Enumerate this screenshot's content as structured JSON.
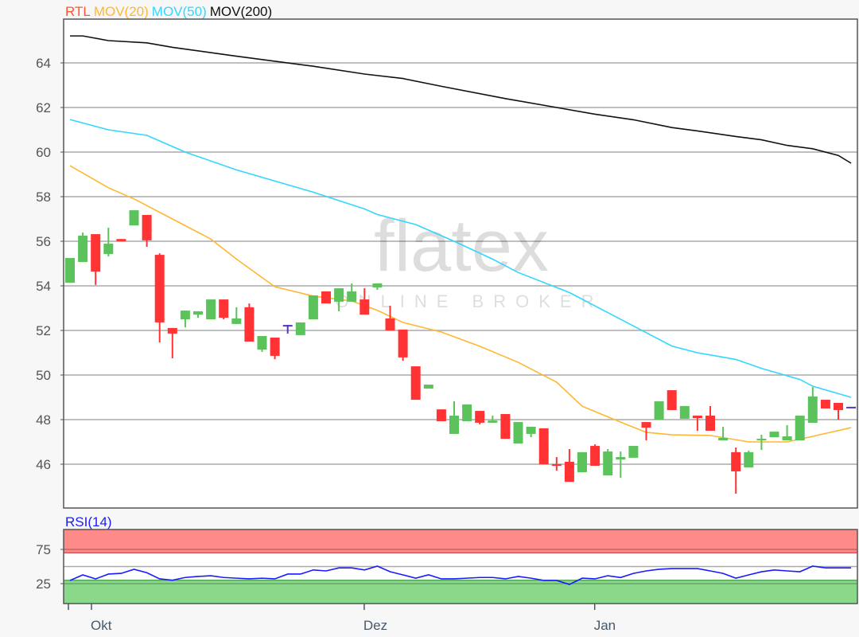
{
  "watermark": {
    "logo": "flatex",
    "sub": "ONLINE BROKER"
  },
  "colors": {
    "up": "#5cc25c",
    "down": "#ff3333",
    "doji": "#5a2fd0",
    "mov20": "#ffb733",
    "mov50": "#33d6ff",
    "mov200": "#111111",
    "rsi": "#1a1aff",
    "overbought_band": "#ff8a8a",
    "oversold_band": "#8ad88a"
  },
  "chart_data": [
    {
      "type": "candlestick",
      "legend": [
        {
          "name": "RTL",
          "color": "#ff5533"
        },
        {
          "name": "MOV(20)",
          "color": "#ffb733"
        },
        {
          "name": "MOV(50)",
          "color": "#33d6ff"
        },
        {
          "name": "MOV(200)",
          "color": "#111111"
        }
      ],
      "ylim": [
        44.07,
        65.96
      ],
      "y_ticks": [
        46,
        48,
        50,
        52,
        54,
        56,
        58,
        60,
        62,
        64
      ],
      "grid": true,
      "x_ticks": [
        {
          "label": "",
          "index": 0
        },
        {
          "label": "Okt",
          "index": 1.8
        },
        {
          "label": "Dez",
          "index": 23.1
        },
        {
          "label": "Jan",
          "index": 41.1
        }
      ],
      "ohlc": [
        [
          54.14,
          55.25,
          54.14,
          55.25
        ],
        [
          55.07,
          56.39,
          55.07,
          56.25
        ],
        [
          56.32,
          56.32,
          54.04,
          54.64
        ],
        [
          55.43,
          56.61,
          55.32,
          55.89
        ],
        [
          56.1,
          56.1,
          56.0,
          56.0
        ],
        [
          56.71,
          57.39,
          56.71,
          57.39
        ],
        [
          57.18,
          57.18,
          55.75,
          56.04
        ],
        [
          55.39,
          55.46,
          51.46,
          52.36
        ],
        [
          52.11,
          52.11,
          50.75,
          51.86
        ],
        [
          52.5,
          52.89,
          52.14,
          52.89
        ],
        [
          52.71,
          52.86,
          52.57,
          52.86
        ],
        [
          52.5,
          53.39,
          52.5,
          53.39
        ],
        [
          53.39,
          53.39,
          52.5,
          52.57
        ],
        [
          52.29,
          53.04,
          52.29,
          52.54
        ],
        [
          53.04,
          53.21,
          51.5,
          51.5
        ],
        [
          51.14,
          51.75,
          51.04,
          51.75
        ],
        [
          51.68,
          51.68,
          50.71,
          50.86
        ],
        [
          52.21,
          52.25,
          51.86,
          52.21
        ],
        [
          51.79,
          52.36,
          51.79,
          52.36
        ],
        [
          52.5,
          53.57,
          52.5,
          53.57
        ],
        [
          53.75,
          53.75,
          53.21,
          53.21
        ],
        [
          53.29,
          53.89,
          52.86,
          53.89
        ],
        [
          53.29,
          54.11,
          53.29,
          53.75
        ],
        [
          53.39,
          53.89,
          52.71,
          52.71
        ],
        [
          53.93,
          54.11,
          53.82,
          54.11
        ],
        [
          52.54,
          53.11,
          52.0,
          52.0
        ],
        [
          52.04,
          52.04,
          50.64,
          50.79
        ],
        [
          50.39,
          50.39,
          48.89,
          48.89
        ],
        [
          49.39,
          49.57,
          49.39,
          49.57
        ],
        [
          48.46,
          48.46,
          47.93,
          47.93
        ],
        [
          47.36,
          48.82,
          47.36,
          48.18
        ],
        [
          47.93,
          48.68,
          47.93,
          48.68
        ],
        [
          48.39,
          48.39,
          47.79,
          47.86
        ],
        [
          47.86,
          48.18,
          47.86,
          47.96
        ],
        [
          48.25,
          48.25,
          47.14,
          47.14
        ],
        [
          46.93,
          47.89,
          46.93,
          47.89
        ],
        [
          47.36,
          47.68,
          47.21,
          47.68
        ],
        [
          47.61,
          47.61,
          46.0,
          46.0
        ],
        [
          46.0,
          46.32,
          45.71,
          45.93
        ],
        [
          46.11,
          46.68,
          45.21,
          45.21
        ],
        [
          45.64,
          46.54,
          45.64,
          46.54
        ],
        [
          46.82,
          46.89,
          45.93,
          45.93
        ],
        [
          45.5,
          46.68,
          45.5,
          46.57
        ],
        [
          46.21,
          46.57,
          45.39,
          46.32
        ],
        [
          46.29,
          46.82,
          46.29,
          46.82
        ],
        [
          47.89,
          47.89,
          47.07,
          47.64
        ],
        [
          48.0,
          48.82,
          48.0,
          48.82
        ],
        [
          49.32,
          49.32,
          48.43,
          48.43
        ],
        [
          48.04,
          48.61,
          48.04,
          48.61
        ],
        [
          48.18,
          48.18,
          47.5,
          48.07
        ],
        [
          48.18,
          48.61,
          47.5,
          47.5
        ],
        [
          47.07,
          47.68,
          47.07,
          47.18
        ],
        [
          46.54,
          46.75,
          44.68,
          45.68
        ],
        [
          45.86,
          46.61,
          45.86,
          46.54
        ],
        [
          47.1,
          47.32,
          46.64,
          47.14
        ],
        [
          47.21,
          47.46,
          47.21,
          47.46
        ],
        [
          47.07,
          47.75,
          47.07,
          47.25
        ],
        [
          47.07,
          48.18,
          47.07,
          48.18
        ],
        [
          47.86,
          49.46,
          47.86,
          49.04
        ],
        [
          48.89,
          48.89,
          48.5,
          48.5
        ],
        [
          48.75,
          48.75,
          48.0,
          48.43
        ],
        [
          48.54,
          48.54,
          48.54,
          48.54
        ]
      ],
      "moving_averages": [
        {
          "name": "MOV(20)",
          "points": [
            [
              0,
              59.39
            ],
            [
              3,
              58.4
            ],
            [
              5,
              57.9
            ],
            [
              8,
              57.0
            ],
            [
              11,
              56.1
            ],
            [
              13,
              55.2
            ],
            [
              16,
              53.96
            ],
            [
              19,
              53.54
            ],
            [
              22,
              53.32
            ],
            [
              24,
              52.9
            ],
            [
              26,
              52.36
            ],
            [
              29,
              51.93
            ],
            [
              32,
              51.29
            ],
            [
              35,
              50.57
            ],
            [
              38,
              49.68
            ],
            [
              40,
              48.6
            ],
            [
              43,
              47.89
            ],
            [
              45,
              47.43
            ],
            [
              47,
              47.32
            ],
            [
              50,
              47.29
            ],
            [
              53,
              47.0
            ],
            [
              56,
              47.0
            ],
            [
              58,
              47.25
            ],
            [
              61,
              47.64
            ]
          ]
        },
        {
          "name": "MOV(50)",
          "points": [
            [
              0,
              61.46
            ],
            [
              3,
              61.0
            ],
            [
              6,
              60.75
            ],
            [
              7,
              60.5
            ],
            [
              9,
              60.0
            ],
            [
              13,
              59.2
            ],
            [
              16,
              58.7
            ],
            [
              19,
              58.2
            ],
            [
              23,
              57.45
            ],
            [
              24,
              57.2
            ],
            [
              27,
              56.75
            ],
            [
              30,
              56.0
            ],
            [
              33,
              55.2
            ],
            [
              35,
              54.6
            ],
            [
              39,
              53.7
            ],
            [
              42,
              52.8
            ],
            [
              45,
              51.9
            ],
            [
              47,
              51.3
            ],
            [
              49,
              51.0
            ],
            [
              52,
              50.7
            ],
            [
              54,
              50.3
            ],
            [
              57,
              49.8
            ],
            [
              58,
              49.5
            ],
            [
              61,
              49.0
            ]
          ]
        },
        {
          "name": "MOV(200)",
          "points": [
            [
              0,
              65.21
            ],
            [
              1,
              65.21
            ],
            [
              3,
              65.0
            ],
            [
              6,
              64.9
            ],
            [
              8,
              64.7
            ],
            [
              13,
              64.3
            ],
            [
              19,
              63.85
            ],
            [
              23,
              63.5
            ],
            [
              26,
              63.3
            ],
            [
              29,
              62.95
            ],
            [
              34,
              62.4
            ],
            [
              38,
              62.0
            ],
            [
              41,
              61.7
            ],
            [
              44,
              61.45
            ],
            [
              47,
              61.1
            ],
            [
              49,
              60.95
            ],
            [
              52,
              60.7
            ],
            [
              54,
              60.55
            ],
            [
              56,
              60.3
            ],
            [
              58,
              60.15
            ],
            [
              60,
              59.85
            ],
            [
              61,
              59.5
            ]
          ]
        }
      ]
    },
    {
      "type": "line",
      "title": "RSI(14)",
      "y_ticks": [
        25,
        75
      ],
      "bands": {
        "overbought": 70,
        "oversold": 30,
        "mid": 50
      },
      "values": [
        29.7,
        37.8,
        32,
        39,
        40,
        46,
        41,
        32,
        30,
        34,
        35.5,
        36.6,
        34,
        33,
        32,
        33,
        32,
        39,
        39,
        45,
        43.6,
        48,
        48,
        45,
        50.6,
        42.4,
        37.8,
        33,
        38,
        32,
        32,
        33,
        34,
        34,
        32,
        35.5,
        33,
        29.7,
        29.7,
        23.8,
        33,
        32,
        36.6,
        34,
        40,
        43.6,
        46,
        47,
        47,
        47,
        43.6,
        40,
        33,
        37.8,
        42.4,
        45,
        43.6,
        42.4,
        50.6,
        48,
        48,
        48
      ]
    }
  ]
}
